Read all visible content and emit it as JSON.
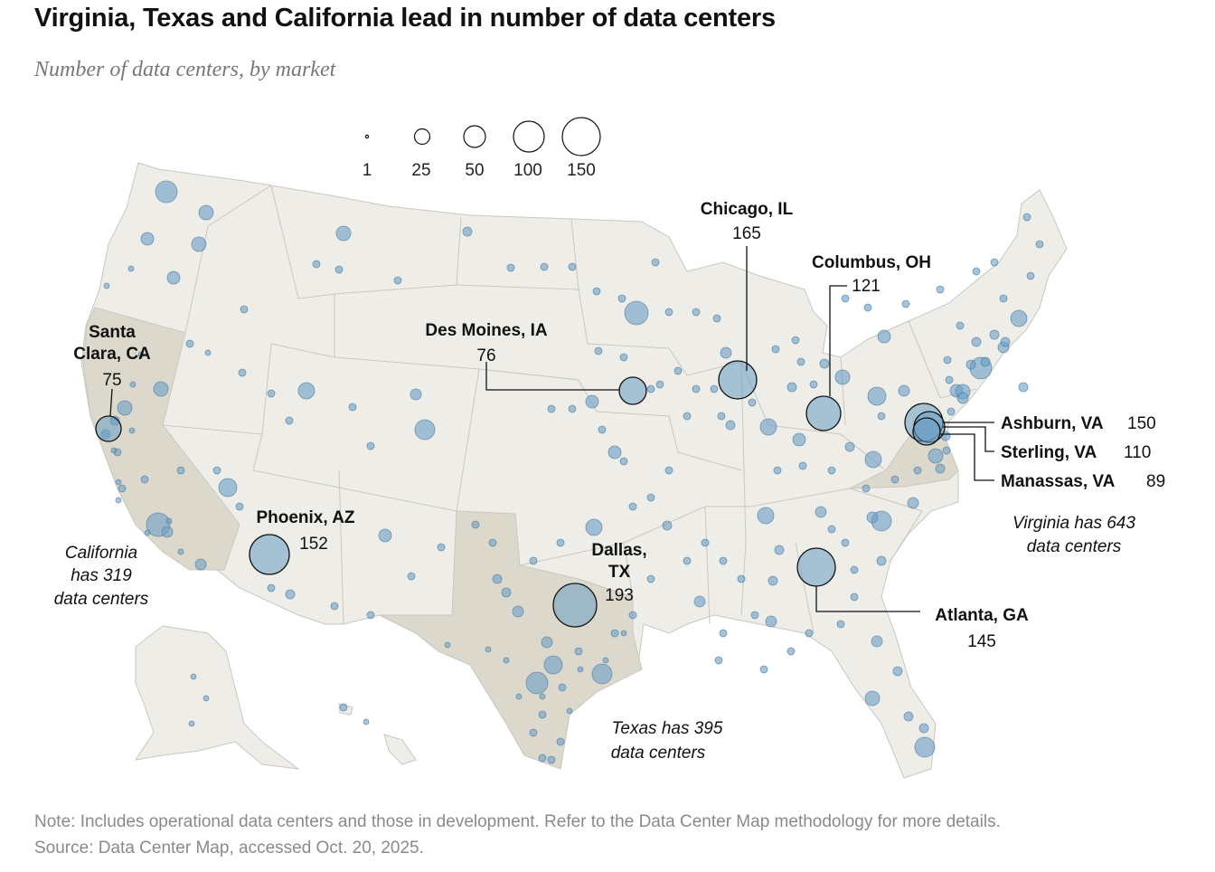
{
  "title": "Virginia, Texas and California lead in number of data centers",
  "subtitle": "Number of data centers, by market",
  "legend": {
    "values": [
      "1",
      "25",
      "50",
      "100",
      "150"
    ]
  },
  "markets": {
    "chicago": {
      "name": "Chicago, IL",
      "count": "165"
    },
    "columbus": {
      "name": "Columbus, OH",
      "count": "121"
    },
    "desmoines": {
      "name": "Des Moines, IA",
      "count": "76"
    },
    "santaclara": {
      "name_line1": "Santa",
      "name_line2": "Clara, CA",
      "count": "75"
    },
    "phoenix": {
      "name": "Phoenix, AZ",
      "count": "152"
    },
    "dallas": {
      "name_line1": "Dallas,",
      "name_line2": "TX",
      "count": "193"
    },
    "atlanta": {
      "name": "Atlanta, GA",
      "count": "145"
    },
    "ashburn": {
      "name": "Ashburn, VA",
      "count": "150"
    },
    "sterling": {
      "name": "Sterling, VA",
      "count": "110"
    },
    "manassas": {
      "name": "Manassas, VA",
      "count": "89"
    }
  },
  "states": {
    "california": {
      "line1": "California",
      "line2": "has 319",
      "line3": "data centers"
    },
    "texas": {
      "line1": "Texas has 395",
      "line2": "data centers"
    },
    "virginia": {
      "line1": "Virginia has 643",
      "line2": "data centers"
    }
  },
  "colors": {
    "land": "#eeede8",
    "highlight": "#dcd9cc",
    "bubble": "#6a9fc4",
    "border": "#c9c7c0"
  },
  "footer": {
    "note": "Note: Includes operational data centers and those in development. Refer to the Data Center Map methodology for more details.",
    "source": "Source: Data Center Map, accessed Oct. 20, 2025."
  }
}
